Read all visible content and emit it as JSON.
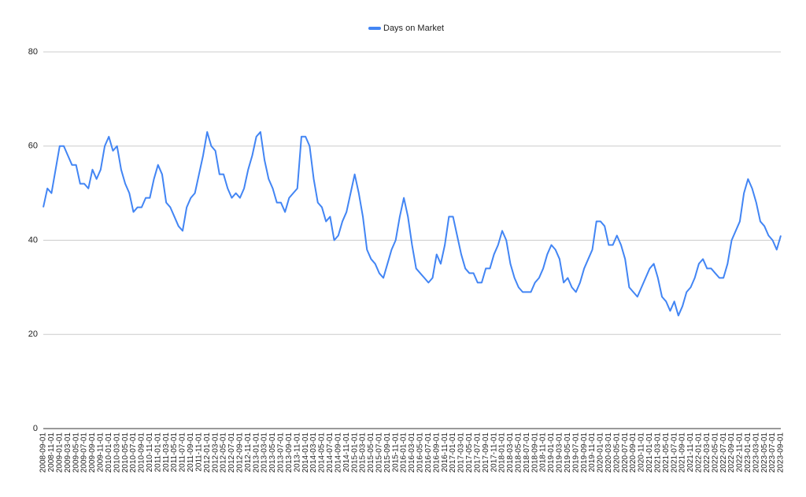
{
  "chart_data": {
    "type": "line",
    "categories": [
      "2008-09-01",
      null,
      "2008-11-01",
      null,
      "2009-01-01",
      null,
      "2009-03-01",
      null,
      "2009-05-01",
      null,
      "2009-07-01",
      null,
      "2009-09-01",
      null,
      "2009-11-01",
      null,
      "2010-01-01",
      null,
      "2010-03-01",
      null,
      "2010-05-01",
      null,
      "2010-07-01",
      null,
      "2010-09-01",
      null,
      "2010-11-01",
      null,
      "2011-01-01",
      null,
      "2011-03-01",
      null,
      "2011-05-01",
      null,
      "2011-07-01",
      null,
      "2011-09-01",
      null,
      "2011-11-01",
      null,
      "2012-01-01",
      null,
      "2012-03-01",
      null,
      "2012-05-01",
      null,
      "2012-07-01",
      null,
      "2012-09-01",
      null,
      "2012-11-01",
      null,
      "2013-01-01",
      null,
      "2013-03-01",
      null,
      "2013-05-01",
      null,
      "2013-07-01",
      null,
      "2013-09-01",
      null,
      "2013-11-01",
      null,
      "2014-01-01",
      null,
      "2014-03-01",
      null,
      "2014-05-01",
      null,
      "2014-07-01",
      null,
      "2014-09-01",
      null,
      "2014-11-01",
      null,
      "2015-01-01",
      null,
      "2015-03-01",
      null,
      "2015-05-01",
      null,
      "2015-07-01",
      null,
      "2015-09-01",
      null,
      "2015-11-01",
      null,
      "2016-01-01",
      null,
      "2016-03-01",
      null,
      "2016-05-01",
      null,
      "2016-07-01",
      null,
      "2016-09-01",
      null,
      "2016-11-01",
      null,
      "2017-01-01",
      null,
      "2017-03-01",
      null,
      "2017-05-01",
      null,
      "2017-07-01",
      null,
      "2017-09-01",
      null,
      "2017-11-01",
      null,
      "2018-01-01",
      null,
      "2018-03-01",
      null,
      "2018-05-01",
      null,
      "2018-07-01",
      null,
      "2018-09-01",
      null,
      "2018-11-01",
      null,
      "2019-01-01",
      null,
      "2019-03-01",
      null,
      "2019-05-01",
      null,
      "2019-07-01",
      null,
      "2019-09-01",
      null,
      "2019-11-01",
      null,
      "2020-01-01",
      null,
      "2020-03-01",
      null,
      "2020-05-01",
      null,
      "2020-07-01",
      null,
      "2020-09-01",
      null,
      "2020-11-01",
      null,
      "2021-01-01",
      null,
      "2021-03-01",
      null,
      "2021-05-01",
      null,
      "2021-07-01",
      null,
      "2021-09-01",
      null,
      "2021-11-01",
      null,
      "2022-01-01",
      null,
      "2022-03-01",
      null,
      "2022-05-01",
      null,
      "2022-07-01",
      null,
      "2022-09-01",
      null,
      "2022-11-01",
      null,
      "2023-01-01",
      null,
      "2023-03-01",
      null,
      "2023-05-01",
      null,
      "2023-07-01",
      null,
      "2023-09-01"
    ],
    "series": [
      {
        "name": "Days on Market",
        "color": "#4285f4",
        "values": [
          47,
          51,
          50,
          55,
          60,
          60,
          58,
          56,
          56,
          52,
          52,
          51,
          55,
          53,
          55,
          60,
          62,
          59,
          60,
          55,
          52,
          50,
          46,
          47,
          47,
          49,
          49,
          53,
          56,
          54,
          48,
          47,
          45,
          43,
          42,
          47,
          49,
          50,
          54,
          58,
          63,
          60,
          59,
          54,
          54,
          51,
          49,
          50,
          49,
          51,
          55,
          58,
          62,
          63,
          57,
          53,
          51,
          48,
          48,
          46,
          49,
          50,
          51,
          62,
          62,
          60,
          53,
          48,
          47,
          44,
          45,
          40,
          41,
          44,
          46,
          50,
          54,
          50,
          45,
          38,
          36,
          35,
          33,
          32,
          35,
          38,
          40,
          45,
          49,
          45,
          39,
          34,
          33,
          32,
          31,
          32,
          37,
          35,
          39,
          45,
          45,
          41,
          37,
          34,
          33,
          33,
          31,
          31,
          34,
          34,
          37,
          39,
          42,
          40,
          35,
          32,
          30,
          29,
          29,
          29,
          31,
          32,
          34,
          37,
          39,
          38,
          36,
          31,
          32,
          30,
          29,
          31,
          34,
          36,
          38,
          44,
          44,
          43,
          39,
          39,
          41,
          39,
          36,
          30,
          29,
          28,
          30,
          32,
          34,
          35,
          32,
          28,
          27,
          25,
          27,
          24,
          26,
          29,
          30,
          32,
          35,
          36,
          34,
          34,
          33,
          32,
          32,
          35,
          40,
          42,
          44,
          50,
          53,
          51,
          48,
          44,
          43,
          41,
          40,
          38,
          41
        ]
      }
    ],
    "ylim": [
      0,
      80
    ],
    "yticks": [
      0,
      20,
      40,
      60,
      80
    ],
    "grid": true,
    "legend": "top"
  }
}
